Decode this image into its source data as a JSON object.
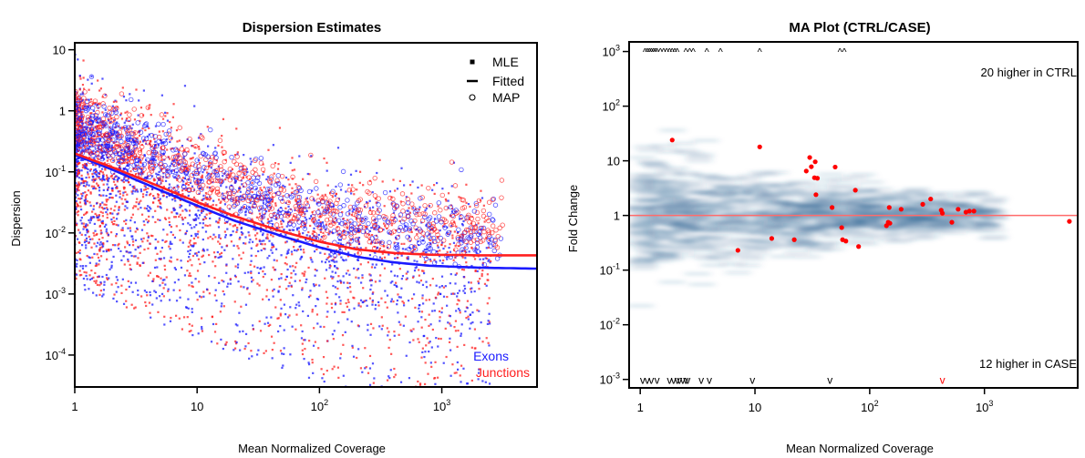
{
  "chart_data": [
    {
      "type": "scatter",
      "title": "Dispersion Estimates",
      "xlabel": "Mean Normalized Coverage",
      "ylabel": "Dispersion",
      "xscale": "log",
      "yscale": "log",
      "xlim": [
        1,
        6000
      ],
      "ylim": [
        3e-05,
        13
      ],
      "xticks": [
        {
          "value": 1,
          "label": "1"
        },
        {
          "value": 10,
          "label": "10"
        },
        {
          "value": 100,
          "base": "10",
          "exp": "2"
        },
        {
          "value": 1000,
          "base": "10",
          "exp": "3"
        }
      ],
      "yticks": [
        {
          "value": 10,
          "label": "10"
        },
        {
          "value": 1,
          "label": "1"
        },
        {
          "value": 0.1,
          "base": "10",
          "exp": "-1"
        },
        {
          "value": 0.01,
          "base": "10",
          "exp": "-2"
        },
        {
          "value": 0.001,
          "base": "10",
          "exp": "-3"
        },
        {
          "value": 0.0001,
          "base": "10",
          "exp": "-4"
        }
      ],
      "legend": {
        "placement": "top-right",
        "entries": [
          {
            "label": "MLE",
            "symbol": "square"
          },
          {
            "label": "Fitted",
            "symbol": "line"
          },
          {
            "label": "MAP",
            "symbol": "circle"
          }
        ]
      },
      "group_labels": [
        {
          "label": "Exons",
          "color": "#1a1aff"
        },
        {
          "label": "Junctions",
          "color": "#ff2020"
        }
      ],
      "fitted_curves": [
        {
          "name": "Exons",
          "color": "#1a1aff",
          "x": [
            1,
            2,
            5,
            10,
            20,
            50,
            100,
            200,
            400,
            800,
            2000,
            6000
          ],
          "y": [
            0.19,
            0.11,
            0.05,
            0.028,
            0.016,
            0.0088,
            0.0058,
            0.0041,
            0.0033,
            0.0029,
            0.0027,
            0.0026
          ]
        },
        {
          "name": "Junctions",
          "color": "#ff2020",
          "x": [
            1,
            2,
            5,
            10,
            20,
            50,
            100,
            200,
            400,
            800,
            2000,
            6000
          ],
          "y": [
            0.2,
            0.12,
            0.057,
            0.032,
            0.019,
            0.0105,
            0.0072,
            0.0054,
            0.0047,
            0.0044,
            0.0043,
            0.0043
          ]
        }
      ],
      "colors": {
        "exons": "#1a1aff",
        "junctions": "#ff2020"
      }
    },
    {
      "type": "scatter",
      "title": "MA Plot (CTRL/CASE)",
      "xlabel": "Mean Normalized Coverage",
      "ylabel": "Fold Change",
      "xscale": "log",
      "yscale": "log",
      "xlim": [
        0.8,
        6500
      ],
      "ylim": [
        0.0007,
        1500
      ],
      "xticks": [
        {
          "value": 1,
          "label": "1"
        },
        {
          "value": 10,
          "label": "10"
        },
        {
          "value": 100,
          "base": "10",
          "exp": "2"
        },
        {
          "value": 1000,
          "base": "10",
          "exp": "3"
        }
      ],
      "yticks": [
        {
          "value": 1000,
          "base": "10",
          "exp": "3"
        },
        {
          "value": 100,
          "base": "10",
          "exp": "2"
        },
        {
          "value": 10,
          "label": "10"
        },
        {
          "value": 1,
          "label": "1"
        },
        {
          "value": 0.1,
          "base": "10",
          "exp": "-1"
        },
        {
          "value": 0.01,
          "base": "10",
          "exp": "-2"
        },
        {
          "value": 0.001,
          "base": "10",
          "exp": "-3"
        }
      ],
      "reference_line": {
        "y": 1,
        "color": "#ff6b6b"
      },
      "annotations": [
        {
          "text": "20 higher in CTRL",
          "placement": "top-right"
        },
        {
          "text": "12 higher in CASE",
          "placement": "bottom-right"
        }
      ],
      "significant_points": {
        "color": "#ff0000",
        "x": [
          1.9,
          11,
          28,
          30,
          31,
          33,
          33.5,
          34,
          35,
          47,
          50,
          57,
          62,
          75,
          80,
          140,
          145,
          148,
          150,
          188,
          290,
          340,
          420,
          430,
          520,
          590,
          690,
          740,
          810,
          7.1,
          14,
          22,
          58,
          5500
        ],
        "y": [
          24,
          18,
          6.5,
          11.5,
          7.8,
          4.9,
          9.6,
          2.4,
          4.8,
          1.4,
          7.7,
          0.6,
          0.34,
          2.9,
          0.27,
          0.65,
          0.75,
          1.4,
          0.72,
          1.3,
          1.6,
          2.0,
          1.25,
          1.1,
          0.75,
          1.3,
          1.15,
          1.2,
          1.2,
          0.23,
          0.38,
          0.36,
          0.36,
          0.78
        ]
      },
      "clipped_high": {
        "marker": "^",
        "y_value": 1000,
        "x": [
          1.1,
          1.15,
          1.2,
          1.25,
          1.3,
          1.35,
          1.4,
          1.5,
          1.6,
          1.7,
          1.8,
          1.9,
          2.0,
          2.1,
          2.5,
          2.7,
          2.9,
          3.8,
          5.0,
          11,
          55,
          60
        ]
      },
      "clipped_low": {
        "marker": "v",
        "y_value": 0.001,
        "x": [
          1.05,
          1.15,
          1.25,
          1.4,
          1.8,
          1.95,
          2.1,
          2.2,
          2.35,
          2.5,
          2.6,
          3.4,
          4.0,
          9.5,
          45,
          430
        ],
        "colors": [
          "#000",
          "#000",
          "#000",
          "#000",
          "#000",
          "#000",
          "#000",
          "#000",
          "#000",
          "#000",
          "#000",
          "#000",
          "#000",
          "#000",
          "#000",
          "#ff0000"
        ]
      },
      "density_color": "#1f5a8c"
    }
  ]
}
